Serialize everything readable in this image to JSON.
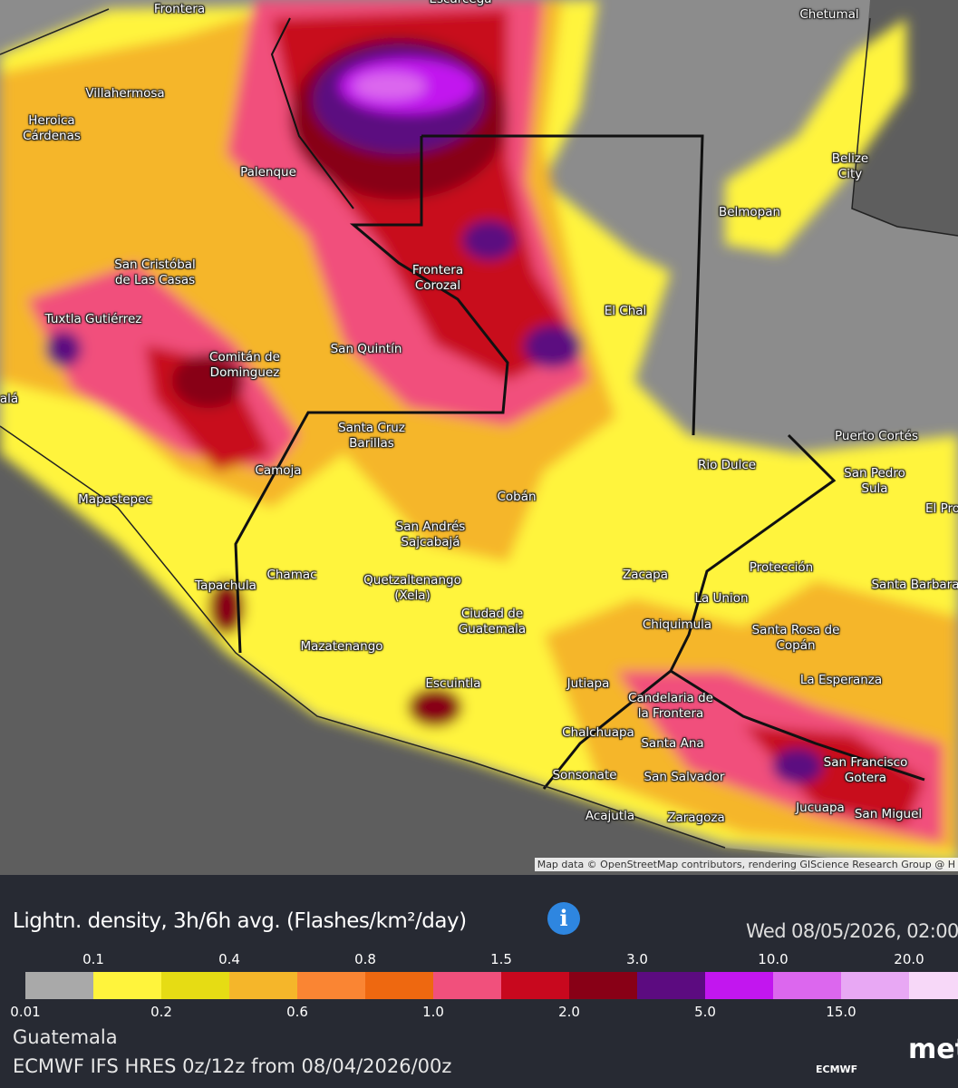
{
  "map": {
    "places": [
      "Escárcega",
      "Frontera",
      "Villahermosa",
      "Heroica Cárdenas",
      "Palenque",
      "San Cristóbal de Las Casas",
      "Tuxtla Gutiérrez",
      "Comitán de Dominguez",
      "San Quintín",
      "Frontera Corozal",
      "El Chal",
      "Chetumal",
      "Belize City",
      "Belmopan",
      "Santa Cruz Barillas",
      "Camoja",
      "Mapastepec",
      "Cobán",
      "San Andrés Sajcabajá",
      "Tapachula",
      "Chamac",
      "Quetzaltenango (Xela)",
      "Ciudad de Guatemala",
      "Mazatenango",
      "Escuintla",
      "Jutiapa",
      "Zacapa",
      "La Union",
      "Chiquimula",
      "Protección",
      "Santa Barbara",
      "Santa Rosa de Copán",
      "Rio Dulce",
      "Puerto Cortés",
      "San Pedro Sula",
      "El Pro",
      "La Esperanza",
      "Candelaria de la Frontera",
      "Chalchuapa",
      "Santa Ana",
      "San Francisco Gotera",
      "Sonsonate",
      "San Salvador",
      "Jucuapa",
      "San Miguel",
      "Acajutla",
      "Zaragoza",
      "alá"
    ],
    "attribution": "Map data © OpenStreetMap contributors, rendering GIScience Research Group @ H"
  },
  "legend": {
    "title": "Lightn. density, 3h/6h avg. (Flashes/km²/day)",
    "datetime": "Wed 08/05/2026, 02:00",
    "ticks": [
      "0.01",
      "0.1",
      "0.2",
      "0.4",
      "0.6",
      "0.8",
      "1.0",
      "1.5",
      "2.0",
      "3.0",
      "5.0",
      "10.0",
      "15.0",
      "20.0"
    ],
    "colors": [
      "#a9a9a9",
      "#fff43c",
      "#e6dc14",
      "#f5b62a",
      "#fa8533",
      "#ee6810",
      "#f1507c",
      "#c8081e",
      "#880016",
      "#5c0b80",
      "#c216ef",
      "#dc67ee",
      "#e8a8f4",
      "#f7d8f8"
    ]
  },
  "footer": {
    "location": "Guatemala",
    "model": "ECMWF IFS HRES 0z/12z from 08/04/2026/00z",
    "logos": [
      "ECMWF",
      "met"
    ]
  }
}
